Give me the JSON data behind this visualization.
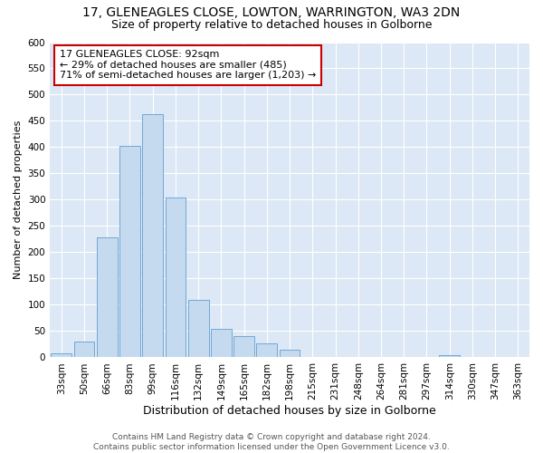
{
  "title1": "17, GLENEAGLES CLOSE, LOWTON, WARRINGTON, WA3 2DN",
  "title2": "Size of property relative to detached houses in Golborne",
  "xlabel": "Distribution of detached houses by size in Golborne",
  "ylabel": "Number of detached properties",
  "categories": [
    "33sqm",
    "50sqm",
    "66sqm",
    "83sqm",
    "99sqm",
    "116sqm",
    "132sqm",
    "149sqm",
    "165sqm",
    "182sqm",
    "198sqm",
    "215sqm",
    "231sqm",
    "248sqm",
    "264sqm",
    "281sqm",
    "297sqm",
    "314sqm",
    "330sqm",
    "347sqm",
    "363sqm"
  ],
  "values": [
    7,
    30,
    228,
    403,
    463,
    305,
    110,
    54,
    40,
    27,
    14,
    0,
    0,
    0,
    0,
    0,
    0,
    5,
    0,
    0,
    0
  ],
  "bar_color": "#c5d9ef",
  "bar_edge_color": "#6fa8d8",
  "annotation_line1": "17 GLENEAGLES CLOSE: 92sqm",
  "annotation_line2": "← 29% of detached houses are smaller (485)",
  "annotation_line3": "71% of semi-detached houses are larger (1,203) →",
  "annotation_box_color": "#ffffff",
  "annotation_box_edge_color": "#cc0000",
  "ylim": [
    0,
    600
  ],
  "yticks": [
    0,
    50,
    100,
    150,
    200,
    250,
    300,
    350,
    400,
    450,
    500,
    550,
    600
  ],
  "background_color": "#dce8f5",
  "grid_color": "#ffffff",
  "footer_text": "Contains HM Land Registry data © Crown copyright and database right 2024.\nContains public sector information licensed under the Open Government Licence v3.0.",
  "title1_fontsize": 10,
  "title2_fontsize": 9,
  "xlabel_fontsize": 9,
  "ylabel_fontsize": 8,
  "tick_fontsize": 7.5,
  "annotation_fontsize": 8,
  "footer_fontsize": 6.5
}
